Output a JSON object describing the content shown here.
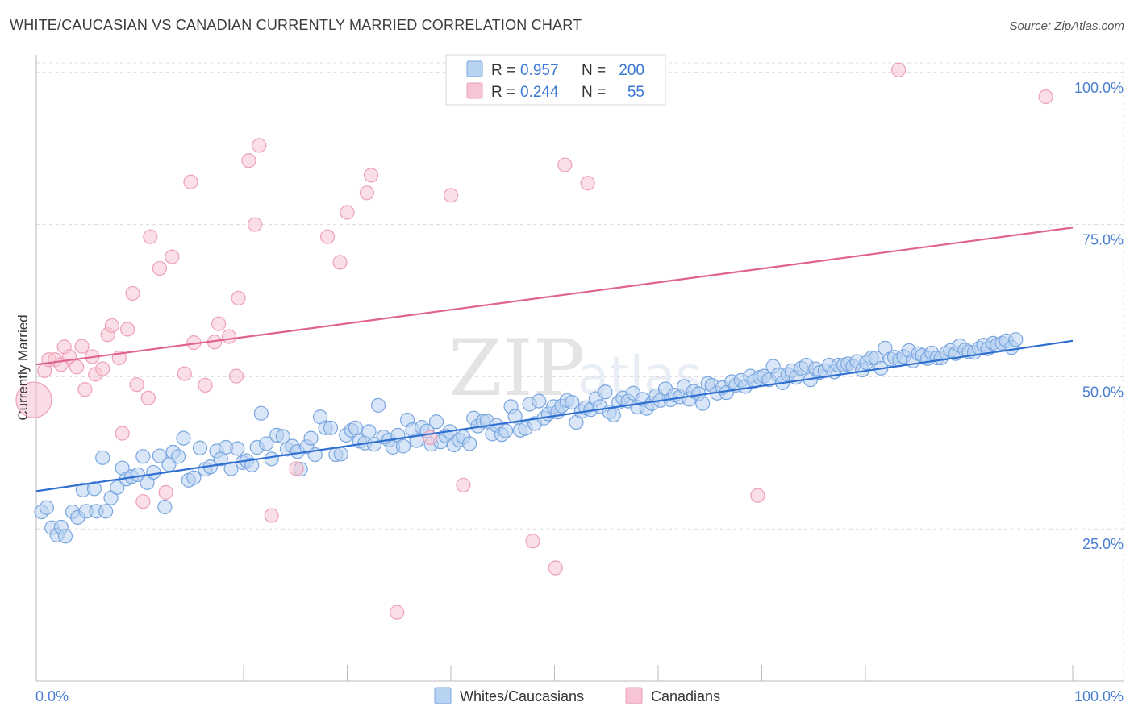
{
  "title": "WHITE/CAUCASIAN VS CANADIAN CURRENTLY MARRIED CORRELATION CHART",
  "source": "Source: ZipAtlas.com",
  "chart_data": {
    "type": "scatter",
    "xlabel": "",
    "ylabel": "Currently Married",
    "xlim": [
      0,
      100
    ],
    "ylim": [
      0,
      105
    ],
    "x_tick_labels": [
      "0.0%",
      "100.0%"
    ],
    "y_ticks": [
      25,
      50,
      75,
      100
    ],
    "y_tick_labels": [
      "25.0%",
      "50.0%",
      "75.0%",
      "100.0%"
    ],
    "grid": true,
    "watermark": {
      "main": "ZIP",
      "sub": "atlas"
    },
    "legend": {
      "position": "top-center",
      "entries": [
        {
          "series": "Whites/Caucasians",
          "r_label": "R =",
          "r": "0.957",
          "n_label": "N =",
          "n": "200"
        },
        {
          "series": "Canadians",
          "r_label": "R =",
          "r": "0.244",
          "n_label": "N =",
          "n": "55"
        }
      ]
    },
    "series": [
      {
        "name": "Whites/Caucasians",
        "color": "#7aa6e0",
        "fill": "#b8d2f1",
        "line_color": "#2f6fd0",
        "trend": {
          "x": [
            0,
            100
          ],
          "y": [
            31.2,
            55.9
          ]
        },
        "points": [
          [
            0.5,
            27.8
          ],
          [
            1.0,
            28.5
          ],
          [
            1.5,
            25.2
          ],
          [
            2.0,
            24.0
          ],
          [
            2.4,
            25.3
          ],
          [
            2.8,
            23.8
          ],
          [
            3.5,
            27.8
          ],
          [
            4.0,
            26.9
          ],
          [
            4.5,
            31.4
          ],
          [
            4.8,
            27.9
          ],
          [
            5.6,
            31.6
          ],
          [
            5.8,
            27.9
          ],
          [
            6.4,
            36.7
          ],
          [
            6.7,
            27.9
          ],
          [
            7.2,
            30.1
          ],
          [
            7.8,
            31.8
          ],
          [
            8.3,
            35.0
          ],
          [
            8.7,
            33.2
          ],
          [
            9.2,
            33.6
          ],
          [
            9.8,
            33.9
          ],
          [
            10.3,
            36.9
          ],
          [
            10.7,
            32.6
          ],
          [
            11.3,
            34.3
          ],
          [
            11.9,
            37.0
          ],
          [
            12.4,
            28.6
          ],
          [
            12.8,
            35.6
          ],
          [
            13.2,
            37.6
          ],
          [
            13.7,
            36.9
          ],
          [
            14.2,
            39.9
          ],
          [
            14.7,
            33.0
          ],
          [
            15.2,
            33.4
          ],
          [
            15.8,
            38.3
          ],
          [
            16.3,
            34.8
          ],
          [
            16.8,
            35.2
          ],
          [
            17.4,
            37.8
          ],
          [
            17.8,
            36.5
          ],
          [
            18.3,
            38.4
          ],
          [
            18.8,
            34.9
          ],
          [
            19.4,
            38.2
          ],
          [
            19.9,
            35.9
          ],
          [
            20.3,
            36.2
          ],
          [
            20.8,
            35.5
          ],
          [
            21.3,
            38.4
          ],
          [
            21.7,
            44.0
          ],
          [
            22.2,
            39.0
          ],
          [
            22.7,
            36.5
          ],
          [
            23.2,
            40.4
          ],
          [
            23.8,
            40.2
          ],
          [
            24.2,
            38.1
          ],
          [
            24.7,
            38.6
          ],
          [
            25.2,
            37.7
          ],
          [
            25.5,
            34.8
          ],
          [
            26.1,
            38.5
          ],
          [
            26.5,
            39.9
          ],
          [
            26.9,
            37.2
          ],
          [
            27.4,
            43.4
          ],
          [
            27.9,
            41.6
          ],
          [
            28.4,
            41.6
          ],
          [
            28.9,
            37.2
          ],
          [
            29.4,
            37.3
          ],
          [
            29.9,
            40.4
          ],
          [
            30.4,
            41.2
          ],
          [
            30.8,
            41.6
          ],
          [
            31.2,
            39.4
          ],
          [
            31.7,
            39.1
          ],
          [
            32.1,
            41.0
          ],
          [
            32.6,
            38.9
          ],
          [
            33.0,
            45.3
          ],
          [
            33.5,
            40.1
          ],
          [
            34.0,
            39.6
          ],
          [
            34.4,
            38.4
          ],
          [
            34.9,
            40.4
          ],
          [
            35.4,
            38.6
          ],
          [
            35.8,
            42.9
          ],
          [
            36.3,
            41.3
          ],
          [
            36.7,
            39.5
          ],
          [
            37.2,
            41.7
          ],
          [
            37.7,
            41.1
          ],
          [
            38.1,
            38.9
          ],
          [
            38.6,
            42.6
          ],
          [
            39.0,
            39.3
          ],
          [
            39.5,
            40.3
          ],
          [
            39.9,
            41.0
          ],
          [
            40.3,
            38.8
          ],
          [
            40.8,
            39.6
          ],
          [
            41.2,
            40.1
          ],
          [
            41.8,
            39.0
          ],
          [
            42.2,
            43.2
          ],
          [
            42.6,
            41.9
          ],
          [
            43.1,
            42.7
          ],
          [
            43.5,
            42.7
          ],
          [
            44.0,
            40.6
          ],
          [
            44.4,
            42.0
          ],
          [
            44.9,
            40.5
          ],
          [
            45.3,
            41.1
          ],
          [
            45.8,
            45.1
          ],
          [
            46.2,
            43.5
          ],
          [
            46.7,
            41.2
          ],
          [
            47.2,
            41.5
          ],
          [
            47.6,
            45.5
          ],
          [
            48.1,
            42.3
          ],
          [
            48.5,
            46.0
          ],
          [
            49.0,
            43.2
          ],
          [
            49.4,
            43.9
          ],
          [
            49.9,
            45.1
          ],
          [
            50.3,
            44.2
          ],
          [
            50.7,
            45.2
          ],
          [
            51.2,
            46.1
          ],
          [
            51.7,
            45.8
          ],
          [
            52.1,
            42.5
          ],
          [
            52.6,
            44.3
          ],
          [
            53.0,
            44.9
          ],
          [
            53.5,
            44.6
          ],
          [
            54.0,
            46.4
          ],
          [
            54.4,
            45.1
          ],
          [
            54.9,
            47.5
          ],
          [
            55.3,
            44.2
          ],
          [
            55.7,
            43.7
          ],
          [
            56.2,
            45.8
          ],
          [
            56.6,
            46.5
          ],
          [
            57.1,
            46.0
          ],
          [
            57.6,
            47.3
          ],
          [
            58.0,
            45.0
          ],
          [
            58.5,
            46.3
          ],
          [
            58.9,
            44.8
          ],
          [
            59.4,
            45.6
          ],
          [
            59.8,
            46.9
          ],
          [
            60.2,
            46.1
          ],
          [
            60.7,
            48.0
          ],
          [
            61.2,
            46.2
          ],
          [
            61.6,
            47.0
          ],
          [
            62.1,
            46.7
          ],
          [
            62.5,
            48.4
          ],
          [
            63.0,
            46.3
          ],
          [
            63.4,
            47.6
          ],
          [
            63.9,
            47.2
          ],
          [
            64.3,
            45.6
          ],
          [
            64.8,
            48.9
          ],
          [
            65.2,
            48.6
          ],
          [
            65.7,
            47.3
          ],
          [
            66.2,
            48.2
          ],
          [
            66.6,
            47.4
          ],
          [
            67.1,
            49.2
          ],
          [
            67.5,
            48.6
          ],
          [
            68.0,
            49.4
          ],
          [
            68.4,
            48.4
          ],
          [
            68.9,
            50.1
          ],
          [
            69.3,
            49.3
          ],
          [
            69.8,
            49.9
          ],
          [
            70.2,
            50.1
          ],
          [
            70.7,
            49.5
          ],
          [
            71.1,
            51.7
          ],
          [
            71.6,
            50.3
          ],
          [
            72.0,
            49.0
          ],
          [
            72.5,
            50.4
          ],
          [
            72.9,
            51.0
          ],
          [
            73.3,
            49.9
          ],
          [
            73.8,
            51.4
          ],
          [
            74.3,
            51.9
          ],
          [
            74.7,
            49.5
          ],
          [
            75.2,
            51.3
          ],
          [
            75.6,
            50.7
          ],
          [
            76.1,
            51.0
          ],
          [
            76.5,
            51.9
          ],
          [
            77.0,
            50.8
          ],
          [
            77.4,
            51.9
          ],
          [
            77.9,
            51.9
          ],
          [
            78.3,
            52.1
          ],
          [
            78.8,
            51.7
          ],
          [
            79.2,
            52.5
          ],
          [
            79.7,
            51.1
          ],
          [
            80.1,
            52.3
          ],
          [
            80.6,
            53.1
          ],
          [
            81.0,
            53.1
          ],
          [
            81.5,
            51.4
          ],
          [
            81.9,
            54.7
          ],
          [
            82.4,
            52.9
          ],
          [
            82.8,
            53.2
          ],
          [
            83.3,
            52.8
          ],
          [
            83.7,
            53.3
          ],
          [
            84.2,
            54.3
          ],
          [
            84.6,
            52.6
          ],
          [
            85.1,
            53.8
          ],
          [
            85.5,
            53.5
          ],
          [
            86.0,
            53.0
          ],
          [
            86.4,
            53.9
          ],
          [
            86.9,
            53.1
          ],
          [
            87.3,
            53.1
          ],
          [
            87.8,
            53.9
          ],
          [
            88.2,
            54.3
          ],
          [
            88.7,
            53.8
          ],
          [
            89.1,
            55.1
          ],
          [
            89.6,
            54.4
          ],
          [
            90.0,
            54.1
          ],
          [
            90.5,
            54.0
          ],
          [
            91.0,
            54.7
          ],
          [
            91.4,
            55.2
          ],
          [
            91.8,
            54.6
          ],
          [
            92.3,
            55.5
          ],
          [
            92.7,
            55.2
          ],
          [
            93.2,
            55.5
          ],
          [
            93.6,
            55.9
          ],
          [
            94.1,
            54.8
          ],
          [
            94.5,
            56.1
          ]
        ]
      },
      {
        "name": "Canadians",
        "color": "#eea0b8",
        "fill": "#f6c4d2",
        "line_color": "#e0628e",
        "trend": {
          "x": [
            0,
            100
          ],
          "y": [
            52.0,
            74.5
          ]
        },
        "points": [
          [
            0.8,
            51.0
          ],
          [
            1.2,
            52.8
          ],
          [
            1.8,
            52.8
          ],
          [
            2.4,
            52.0
          ],
          [
            2.7,
            54.9
          ],
          [
            3.2,
            53.3
          ],
          [
            3.9,
            51.6
          ],
          [
            4.4,
            55.0
          ],
          [
            4.7,
            47.9
          ],
          [
            5.4,
            53.3
          ],
          [
            5.7,
            50.4
          ],
          [
            6.4,
            51.3
          ],
          [
            6.9,
            56.9
          ],
          [
            7.3,
            58.4
          ],
          [
            8.0,
            53.1
          ],
          [
            8.3,
            40.7
          ],
          [
            8.8,
            57.8
          ],
          [
            9.3,
            63.7
          ],
          [
            9.7,
            48.7
          ],
          [
            10.3,
            29.5
          ],
          [
            10.8,
            46.5
          ],
          [
            11.0,
            73.0
          ],
          [
            11.9,
            67.8
          ],
          [
            12.5,
            31.0
          ],
          [
            13.1,
            69.7
          ],
          [
            14.3,
            50.5
          ],
          [
            14.9,
            82.0
          ],
          [
            15.2,
            55.6
          ],
          [
            16.3,
            48.6
          ],
          [
            17.2,
            55.7
          ],
          [
            17.6,
            58.7
          ],
          [
            18.6,
            56.6
          ],
          [
            19.3,
            50.1
          ],
          [
            19.5,
            62.9
          ],
          [
            20.5,
            85.5
          ],
          [
            21.1,
            75.0
          ],
          [
            21.5,
            88.0
          ],
          [
            22.7,
            27.2
          ],
          [
            25.1,
            34.9
          ],
          [
            28.1,
            73.0
          ],
          [
            29.3,
            68.8
          ],
          [
            30.0,
            77.0
          ],
          [
            31.9,
            80.2
          ],
          [
            32.3,
            83.1
          ],
          [
            34.8,
            11.3
          ],
          [
            38.0,
            40.0
          ],
          [
            40.0,
            79.8
          ],
          [
            41.2,
            32.2
          ],
          [
            47.9,
            23.0
          ],
          [
            50.1,
            18.6
          ],
          [
            51.0,
            84.8
          ],
          [
            53.2,
            81.8
          ],
          [
            69.6,
            30.5
          ],
          [
            83.2,
            100.4
          ],
          [
            97.4,
            96.0
          ]
        ]
      }
    ],
    "highlight_point": {
      "series": "Canadians",
      "x": 0.0,
      "y": 46.2
    }
  },
  "bottom_legend": [
    {
      "label": "Whites/Caucasians"
    },
    {
      "label": "Canadians"
    }
  ]
}
